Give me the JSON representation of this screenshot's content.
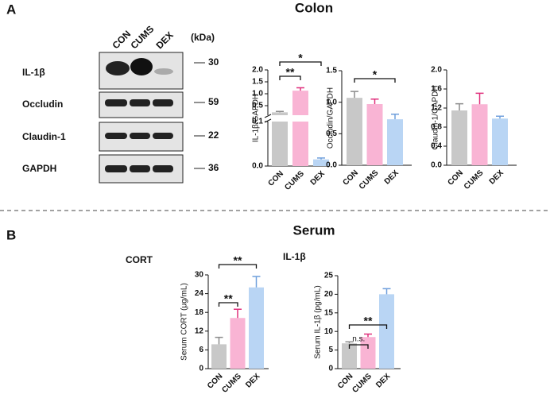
{
  "panels": {
    "a": {
      "label": "A",
      "title": "Colon"
    },
    "b": {
      "label": "B",
      "title": "Serum",
      "subtitles": [
        "CORT",
        "IL-1β"
      ]
    }
  },
  "blot": {
    "lanes": [
      "CON",
      "CUMS",
      "DEX"
    ],
    "unit": "(kDa)",
    "rows": [
      {
        "name": "IL-1β",
        "marker": "30"
      },
      {
        "name": "Occludin",
        "marker": "59"
      },
      {
        "name": "Claudin-1",
        "marker": "22"
      },
      {
        "name": "GAPDH",
        "marker": "36"
      }
    ]
  },
  "chart_data": [
    {
      "type": "bar",
      "ylabel": "IL-1β/GAPDH",
      "categories": [
        "CON",
        "CUMS",
        "DEX"
      ],
      "values": [
        0.22,
        1.13,
        0.015
      ],
      "errors": [
        0.04,
        0.12,
        0.003
      ],
      "colors": [
        "#c8c8c8",
        "#f9b4d4",
        "#b9d5f4"
      ],
      "error_colors": [
        "#8c8c8c",
        "#e0307c",
        "#6f9fdc"
      ],
      "ylim": [
        0,
        2.0
      ],
      "ysegments": [
        {
          "ylim": [
            0,
            0.1
          ],
          "yticks": [
            {
              "value": 0,
              "label": "0.0"
            },
            0.1
          ]
        },
        {
          "ylim": [
            0.1,
            2.0
          ],
          "yticks": [
            0.5,
            {
              "value": 1,
              "label": "1.0"
            },
            1.5,
            {
              "value": 2,
              "label": "2.0"
            }
          ]
        }
      ],
      "annotations": [
        {
          "text": "**",
          "from": 0,
          "to": 1
        },
        {
          "text": "*",
          "from": 0,
          "to": 2
        }
      ]
    },
    {
      "type": "bar",
      "ylabel": "Occludin/GAPDH",
      "categories": [
        "CON",
        "CUMS",
        "DEX"
      ],
      "values": [
        1.07,
        0.97,
        0.73
      ],
      "errors": [
        0.1,
        0.08,
        0.08
      ],
      "colors": [
        "#c8c8c8",
        "#f9b4d4",
        "#b9d5f4"
      ],
      "error_colors": [
        "#8c8c8c",
        "#e0307c",
        "#6f9fdc"
      ],
      "ylim": [
        0,
        1.5
      ],
      "yticks": [
        {
          "value": 0,
          "label": "0.0"
        },
        0.5,
        {
          "value": 1,
          "label": "1.0"
        },
        1.5
      ],
      "annotations": [
        {
          "text": "*",
          "from": 0,
          "to": 2
        }
      ]
    },
    {
      "type": "bar",
      "ylabel": "Claudin-1/GAPDH",
      "categories": [
        "CON",
        "CUMS",
        "DEX"
      ],
      "values": [
        1.15,
        1.28,
        0.98
      ],
      "errors": [
        0.14,
        0.23,
        0.05
      ],
      "colors": [
        "#c8c8c8",
        "#f9b4d4",
        "#b9d5f4"
      ],
      "error_colors": [
        "#8c8c8c",
        "#e0307c",
        "#6f9fdc"
      ],
      "ylim": [
        0,
        2.0
      ],
      "yticks": [
        {
          "value": 0,
          "label": "0.0"
        },
        0.4,
        0.8,
        1.2,
        1.6,
        {
          "value": 2,
          "label": "2.0"
        }
      ],
      "annotations": []
    },
    {
      "type": "bar",
      "ylabel": "Serum CORT (μg/mL)",
      "categories": [
        "CON",
        "CUMS",
        "DEX"
      ],
      "values": [
        7.8,
        16.2,
        26
      ],
      "errors": [
        2.2,
        2.8,
        3.5
      ],
      "colors": [
        "#c8c8c8",
        "#f9b4d4",
        "#b9d5f4"
      ],
      "error_colors": [
        "#8c8c8c",
        "#e0307c",
        "#6f9fdc"
      ],
      "ylim": [
        0,
        30
      ],
      "yticks": [
        0,
        6,
        12,
        18,
        24,
        30
      ],
      "annotations": [
        {
          "text": "**",
          "from": 0,
          "to": 1
        },
        {
          "text": "**",
          "from": 0,
          "to": 2
        }
      ]
    },
    {
      "type": "bar",
      "ylabel": "Serum IL-1β (pg/mL)",
      "categories": [
        "CON",
        "CUMS",
        "DEX"
      ],
      "values": [
        6.8,
        8.5,
        20
      ],
      "errors": [
        0.4,
        0.8,
        1.5
      ],
      "colors": [
        "#c8c8c8",
        "#f9b4d4",
        "#b9d5f4"
      ],
      "error_colors": [
        "#8c8c8c",
        "#e0307c",
        "#6f9fdc"
      ],
      "ylim": [
        0,
        25
      ],
      "yticks": [
        0,
        5,
        10,
        15,
        20,
        25
      ],
      "annotations": [
        {
          "text": "n.s.",
          "from": 0,
          "to": 1
        },
        {
          "text": "**",
          "from": 0,
          "to": 2
        }
      ]
    }
  ]
}
